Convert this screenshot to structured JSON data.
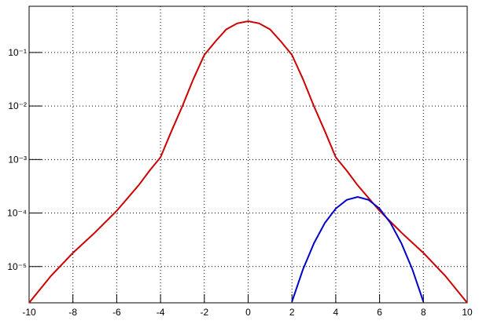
{
  "chart_data": {
    "type": "line",
    "log_y": true,
    "grid": true,
    "xlim": [
      -10,
      10
    ],
    "ylim": [
      2.1e-06,
      0.73
    ],
    "xticks": [
      -10,
      -8,
      -6,
      -4,
      -2,
      0,
      2,
      4,
      6,
      8,
      10
    ],
    "yticks": [
      {
        "value": 1e-05,
        "label": "10⁻⁵"
      },
      {
        "value": 0.0001,
        "label": "10⁻⁴"
      },
      {
        "value": 0.001,
        "label": "10⁻³"
      },
      {
        "value": 0.01,
        "label": "10⁻²"
      },
      {
        "value": 0.1,
        "label": "10⁻¹"
      }
    ],
    "series": [
      {
        "color": "#cc0000",
        "x": [
          -10,
          -9,
          -8,
          -7,
          -6,
          -5,
          -4.5,
          -4,
          -3.5,
          -3,
          -2.5,
          -2,
          -1.5,
          -1,
          -0.5,
          0,
          0.5,
          1,
          1.5,
          2,
          2.5,
          3,
          3.5,
          4,
          4.5,
          5,
          6,
          7,
          8,
          9,
          10
        ],
        "values": [
          2.1e-06,
          6.7e-06,
          1.8e-05,
          4.3e-05,
          0.00011,
          0.00033,
          0.00062,
          0.0011,
          0.0034,
          0.01,
          0.032,
          0.09,
          0.16,
          0.27,
          0.35,
          0.385,
          0.35,
          0.27,
          0.16,
          0.09,
          0.032,
          0.01,
          0.0034,
          0.0011,
          0.00062,
          0.00033,
          0.00011,
          4.3e-05,
          1.8e-05,
          6.7e-06,
          2.1e-06
        ]
      },
      {
        "color": "#0000cc",
        "x": [
          2,
          2.5,
          3,
          3.5,
          4,
          4.5,
          5,
          5.5,
          6,
          6.5,
          7,
          7.5,
          8
        ],
        "values": [
          2.2e-06,
          8.8e-06,
          2.7e-05,
          6.5e-05,
          0.000121,
          0.000176,
          0.0002,
          0.000176,
          0.000121,
          6.5e-05,
          2.7e-05,
          8.8e-06,
          2.2e-06
        ]
      }
    ]
  }
}
